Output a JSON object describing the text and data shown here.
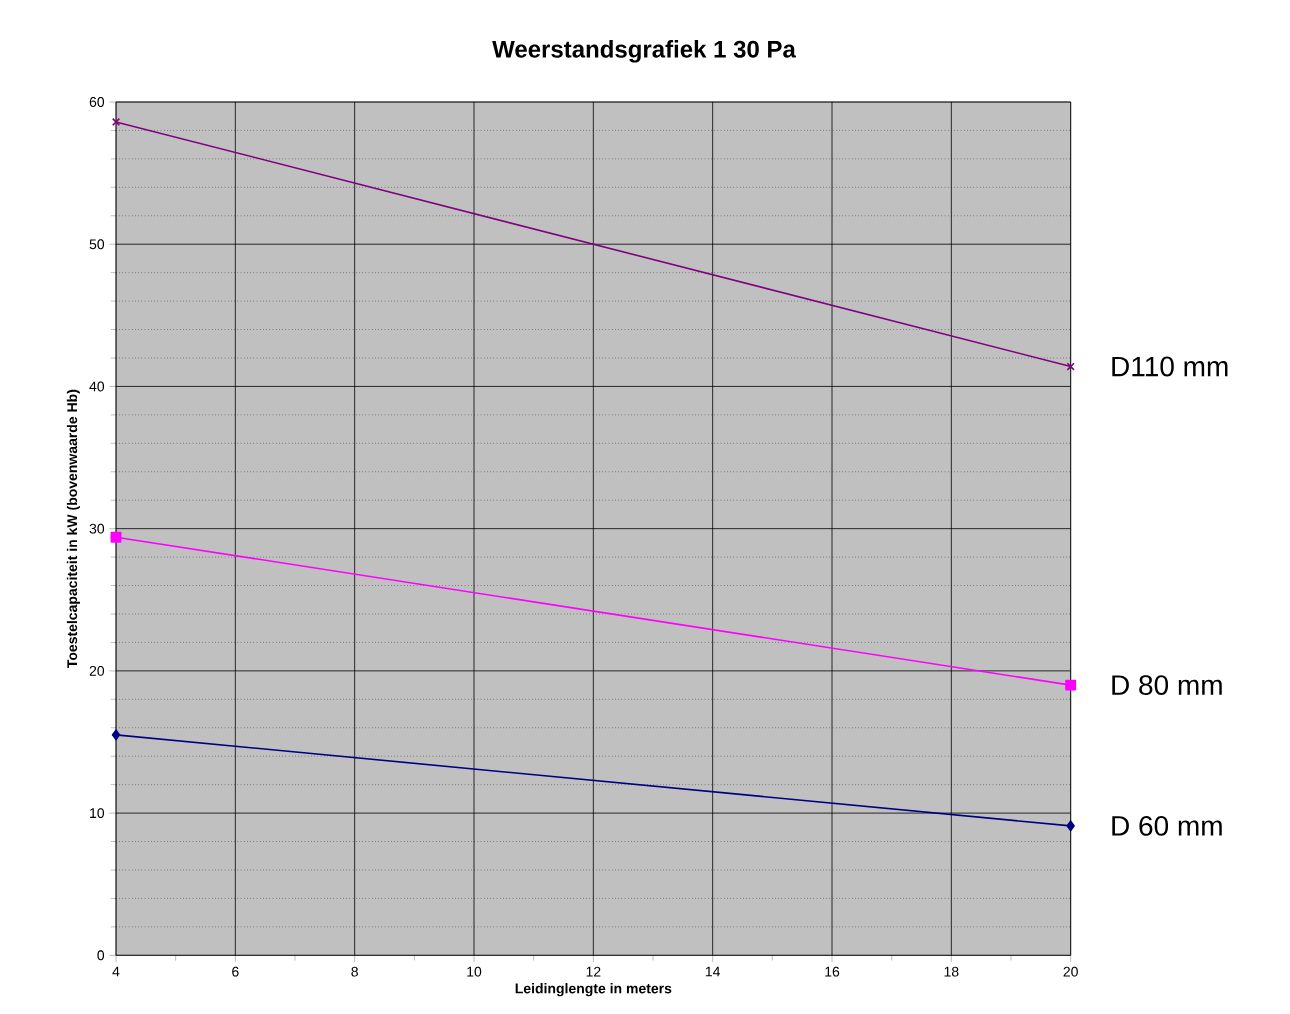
{
  "chart_data": {
    "type": "line",
    "title": "Weerstandsgrafiek 1   30 Pa",
    "xlabel": "Leidinglengte in meters",
    "ylabel": "Toestelcapaciteit in kW (bovenwaarde Hb)",
    "x": [
      4,
      20
    ],
    "series": [
      {
        "name": "D110 mm",
        "color": "#800080",
        "marker": "cross",
        "values": [
          58.6,
          41.4
        ]
      },
      {
        "name": "D 80 mm",
        "color": "#ff00ff",
        "marker": "square",
        "values": [
          29.4,
          19.0
        ]
      },
      {
        "name": "D 60 mm",
        "color": "#000080",
        "marker": "diamond",
        "values": [
          15.5,
          9.1
        ]
      }
    ],
    "xlim": [
      4,
      20
    ],
    "ylim": [
      0,
      60
    ],
    "xticks": [
      4,
      {
        "value": 5,
        "label": null
      },
      6,
      {
        "value": 7,
        "label": null
      },
      8,
      {
        "value": 9,
        "label": null
      },
      10,
      {
        "value": 11,
        "label": null
      },
      12,
      {
        "value": 13,
        "label": null
      },
      14,
      {
        "value": 15,
        "label": null
      },
      16,
      {
        "value": 17,
        "label": null
      },
      18,
      {
        "value": 19,
        "label": null
      },
      20
    ],
    "yticks": [
      0,
      {
        "value": 2,
        "label": null
      },
      {
        "value": 4,
        "label": null
      },
      {
        "value": 6,
        "label": null
      },
      {
        "value": 8,
        "label": null
      },
      10,
      {
        "value": 12,
        "label": null
      },
      {
        "value": 14,
        "label": null
      },
      {
        "value": 16,
        "label": null
      },
      {
        "value": 18,
        "label": null
      },
      20,
      {
        "value": 22,
        "label": null
      },
      {
        "value": 24,
        "label": null
      },
      {
        "value": 26,
        "label": null
      },
      {
        "value": 28,
        "label": null
      },
      30,
      {
        "value": 32,
        "label": null
      },
      {
        "value": 34,
        "label": null
      },
      {
        "value": 36,
        "label": null
      },
      {
        "value": 38,
        "label": null
      },
      40,
      {
        "value": 42,
        "label": null
      },
      {
        "value": 44,
        "label": null
      },
      {
        "value": 46,
        "label": null
      },
      {
        "value": 48,
        "label": null
      },
      50,
      {
        "value": 52,
        "label": null
      },
      {
        "value": 54,
        "label": null
      },
      {
        "value": 56,
        "label": null
      },
      {
        "value": 58,
        "label": null
      },
      60
    ],
    "grid": true,
    "line_style": "solid"
  }
}
